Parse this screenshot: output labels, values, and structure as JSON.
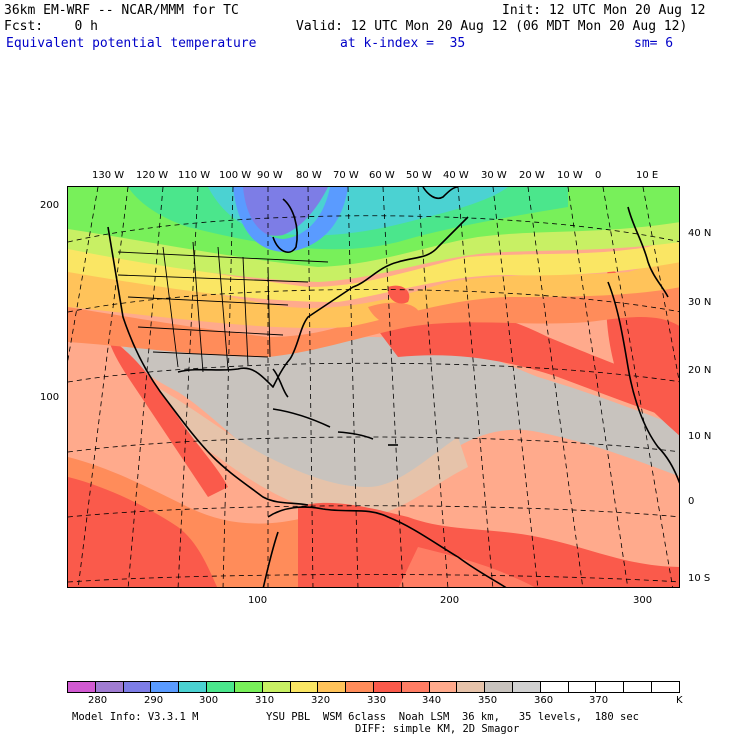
{
  "header": {
    "model_title": "36km EM-WRF -- NCAR/MMM for TC",
    "init": "Init: 12 UTC Mon 20 Aug 12",
    "fcst": "Fcst:    0 h",
    "valid": "Valid: 12 UTC Mon 20 Aug 12 (06 MDT Mon 20 Aug 12)",
    "field": "Equivalent potential temperature",
    "level": "at k-index =  35",
    "smoothing": "sm= 6"
  },
  "axes": {
    "top_lon_labels": [
      "130 W",
      "120 W",
      "110 W",
      "100 W",
      "90 W",
      "80 W",
      "70 W",
      "60 W",
      "50 W",
      "40 W",
      "30 W",
      "20 W",
      "10 W",
      "0",
      "10 E"
    ],
    "right_lat_labels": [
      "40 N",
      "30 N",
      "20 N",
      "10 N",
      "0",
      "10 S"
    ],
    "left_grid_labels": [
      "200",
      "100"
    ],
    "bottom_grid_labels": [
      "100",
      "200",
      "300"
    ]
  },
  "colorbar": {
    "labels": [
      "280",
      "290",
      "300",
      "310",
      "320",
      "330",
      "340",
      "350",
      "360",
      "370"
    ],
    "unit": "K",
    "colors": [
      "#d25ad2",
      "#a07cd2",
      "#7d7de6",
      "#5a9bff",
      "#4bd2d2",
      "#4be68c",
      "#78f05a",
      "#c8f064",
      "#fae664",
      "#ffc35a",
      "#ff8c5a",
      "#fa5a4b",
      "#ff7d64",
      "#ffaa8c",
      "#e6c3aa",
      "#c8c3be",
      "#d2d2d2",
      "#ffffff",
      "#ffffff",
      "#ffffff",
      "#ffffff",
      "#ffffff"
    ]
  },
  "footer": {
    "model_info": "Model Info: V3.3.1 M",
    "physics": "YSU PBL  WSM 6class  Noah LSM  36 km,   35 levels,  180 sec",
    "diffusion": "DIFF: simple KM, 2D Smagor"
  }
}
